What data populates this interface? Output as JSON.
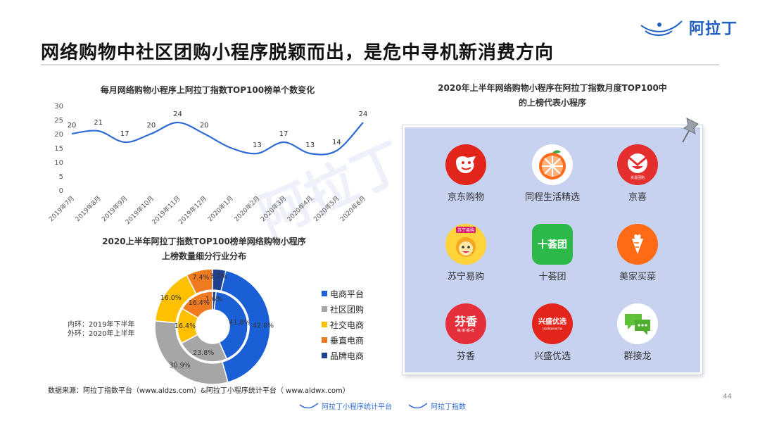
{
  "page": {
    "title": "网络购物中社区团购小程序脱颖而出，是危中寻机新消费方向",
    "brand": "阿拉丁",
    "watermark": "阿拉丁",
    "page_number": "44",
    "source": "数据来源：阿拉丁指数平台（www.aldzs.com）&阿拉丁小程序统计平台（ www.aldwx.com）",
    "footer_items": [
      "阿拉丁小程序统计平台",
      "阿拉丁指数"
    ]
  },
  "colors": {
    "brand_blue": "#1f5fbf",
    "line": "#2f6bd4",
    "ecommerce": "#1a5fd6",
    "community": "#a6a6a6",
    "social": "#ffc000",
    "vertical": "#f07a20",
    "brand_ecommerce": "#1f3f8f",
    "panel_bg": "#c7d2f0"
  },
  "chart_data": [
    {
      "type": "line",
      "title": "每月网络购物小程序上阿拉丁指数TOP100榜单个数变化",
      "categories": [
        "2019年7月",
        "2019年8月",
        "2019年9月",
        "2019年10月",
        "2019年11月",
        "2019年12月",
        "2020年1月",
        "2020年2月",
        "2020年3月",
        "2020年4月",
        "2020年5月",
        "2020年6月"
      ],
      "values": [
        20,
        21,
        17,
        20,
        24,
        20,
        15,
        13,
        17,
        13,
        14,
        24
      ],
      "data_labels": [
        20,
        21,
        17,
        20,
        24,
        20,
        null,
        13,
        17,
        13,
        14,
        24
      ],
      "ylim": [
        0,
        30
      ],
      "yticks": [
        0,
        5,
        10,
        15,
        20,
        25,
        30
      ],
      "grid": false,
      "xlabel": "",
      "ylabel": ""
    },
    {
      "type": "pie",
      "subtype": "double-donut",
      "title_lines": [
        "2020上半年阿拉丁指数TOP100榜单网络购物小程序",
        "上榜数量细分行业分布"
      ],
      "ring_note_lines": [
        "内环：2019年下半年",
        "外环：2020年上半年"
      ],
      "categories": [
        "电商平台",
        "社区团购",
        "社交电商",
        "垂直电商",
        "品牌电商"
      ],
      "inner": {
        "name": "2019年下半年",
        "values": [
          41.8,
          23.8,
          16.4,
          16.4,
          1.6
        ],
        "labels": [
          "41.8%",
          "23.8%",
          "16.4%",
          "16.4%",
          "1.6%"
        ]
      },
      "outer": {
        "name": "2020年上半年",
        "values": [
          42.0,
          30.9,
          16.0,
          7.4,
          3.7
        ],
        "labels": [
          "42.0%",
          "30.9%",
          "16.0%",
          "7.4%",
          "3.7%"
        ]
      },
      "legend_position": "right"
    }
  ],
  "panel": {
    "title_lines": [
      "2020年上半年网络购物小程序在阿拉丁指数月度TOP100中",
      "的上榜代表小程序"
    ],
    "apps": [
      {
        "name": "京东购物",
        "icon": "jd-dog-icon",
        "color": "#e1251b"
      },
      {
        "name": "同程生活精选",
        "icon": "orange-slice-icon",
        "color": "#ff6a1a"
      },
      {
        "name": "京喜",
        "icon": "jingxi-icon",
        "color": "#e52e2e",
        "sub": "京喜团购"
      },
      {
        "name": "苏宁易购",
        "icon": "suning-lion-icon",
        "color": "#ffd33a",
        "sub": "苏宁易购"
      },
      {
        "name": "十荟团",
        "icon": "shihuituan-icon",
        "color": "#2db84a",
        "glyph": "十荟团"
      },
      {
        "name": "美家买菜",
        "icon": "carrot-icon",
        "color": "#ff6a14"
      },
      {
        "name": "芬香",
        "icon": "fenxiang-icon",
        "color": "#e52f3a",
        "glyph": "芬香",
        "sub": "每·家·都·有"
      },
      {
        "name": "兴盛优选",
        "icon": "xingsheng-icon",
        "color": "#e3241b",
        "glyph": "兴盛优选",
        "sub": "社区网店优选平台"
      },
      {
        "name": "群接龙",
        "icon": "chat-bubbles-icon",
        "color": "#5dc23a"
      }
    ]
  }
}
